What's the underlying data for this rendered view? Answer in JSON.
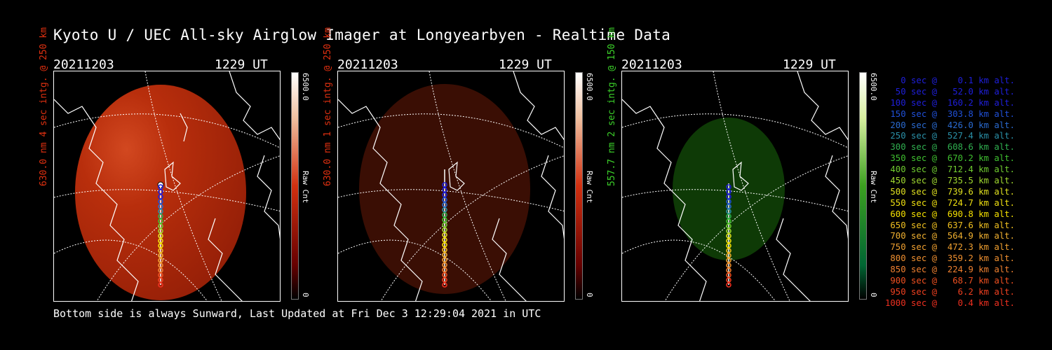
{
  "title": "Kyoto U / UEC All-sky Airglow Imager at Longyearbyen - Realtime Data",
  "footer": "Bottom side is always Sunward, Last Updated at Fri Dec  3 12:29:04 2021 in UTC",
  "panels": [
    {
      "date": "20211203",
      "time": "1229 UT",
      "label": "630.0 nm 4 sec intg. @ 250 km",
      "label_color": "#e03010",
      "cb_max": "6500.0",
      "cb_min": "0",
      "cb_unit": "Raw Cnt",
      "glow": "red-bright"
    },
    {
      "date": "20211203",
      "time": "1229 UT",
      "label": "630.0 nm 1 sec intg. @ 250 km",
      "label_color": "#e03010",
      "cb_max": "6500.0",
      "cb_min": "0",
      "cb_unit": "Raw Cnt",
      "glow": "red-dim"
    },
    {
      "date": "20211203",
      "time": "1229 UT",
      "label": "557.7 nm 2 sec intg. @ 150 km",
      "label_color": "#3cd22a",
      "cb_max": "6500.0",
      "cb_min": "0",
      "cb_unit": "Raw Cnt",
      "glow": "green"
    }
  ],
  "colors": {
    "red_bar": "#e03010",
    "green_bar": "#3ca020"
  },
  "legend": [
    {
      "text": "   0 sec @    0.1 km alt.",
      "color": "#1f1fdc"
    },
    {
      "text": "  50 sec @   52.0 km alt.",
      "color": "#1f1fdc"
    },
    {
      "text": " 100 sec @  160.2 km alt.",
      "color": "#1f1fdc"
    },
    {
      "text": " 150 sec @  303.8 km alt.",
      "color": "#2050d8"
    },
    {
      "text": " 200 sec @  426.0 km alt.",
      "color": "#2a6ad0"
    },
    {
      "text": " 250 sec @  527.4 km alt.",
      "color": "#2a90a8"
    },
    {
      "text": " 300 sec @  608.6 km alt.",
      "color": "#30b050"
    },
    {
      "text": " 350 sec @  670.2 km alt.",
      "color": "#40c030"
    },
    {
      "text": " 400 sec @  712.4 km alt.",
      "color": "#70cc30"
    },
    {
      "text": " 450 sec @  735.5 km alt.",
      "color": "#a0d830"
    },
    {
      "text": " 500 sec @  739.6 km alt.",
      "color": "#e0e020"
    },
    {
      "text": " 550 sec @  724.7 km alt.",
      "color": "#f0e010"
    },
    {
      "text": " 600 sec @  690.8 km alt.",
      "color": "#f5e000"
    },
    {
      "text": " 650 sec @  637.6 km alt.",
      "color": "#f0c020"
    },
    {
      "text": " 700 sec @  564.9 km alt.",
      "color": "#f0b030"
    },
    {
      "text": " 750 sec @  472.3 km alt.",
      "color": "#f0a030"
    },
    {
      "text": " 800 sec @  359.2 km alt.",
      "color": "#f09030"
    },
    {
      "text": " 850 sec @  224.9 km alt.",
      "color": "#f08030"
    },
    {
      "text": " 900 sec @   68.7 km alt.",
      "color": "#f05020"
    },
    {
      "text": " 950 sec @    6.2 km alt.",
      "color": "#f04020"
    },
    {
      "text": "1000 sec @    0.4 km alt.",
      "color": "#f03020"
    }
  ]
}
